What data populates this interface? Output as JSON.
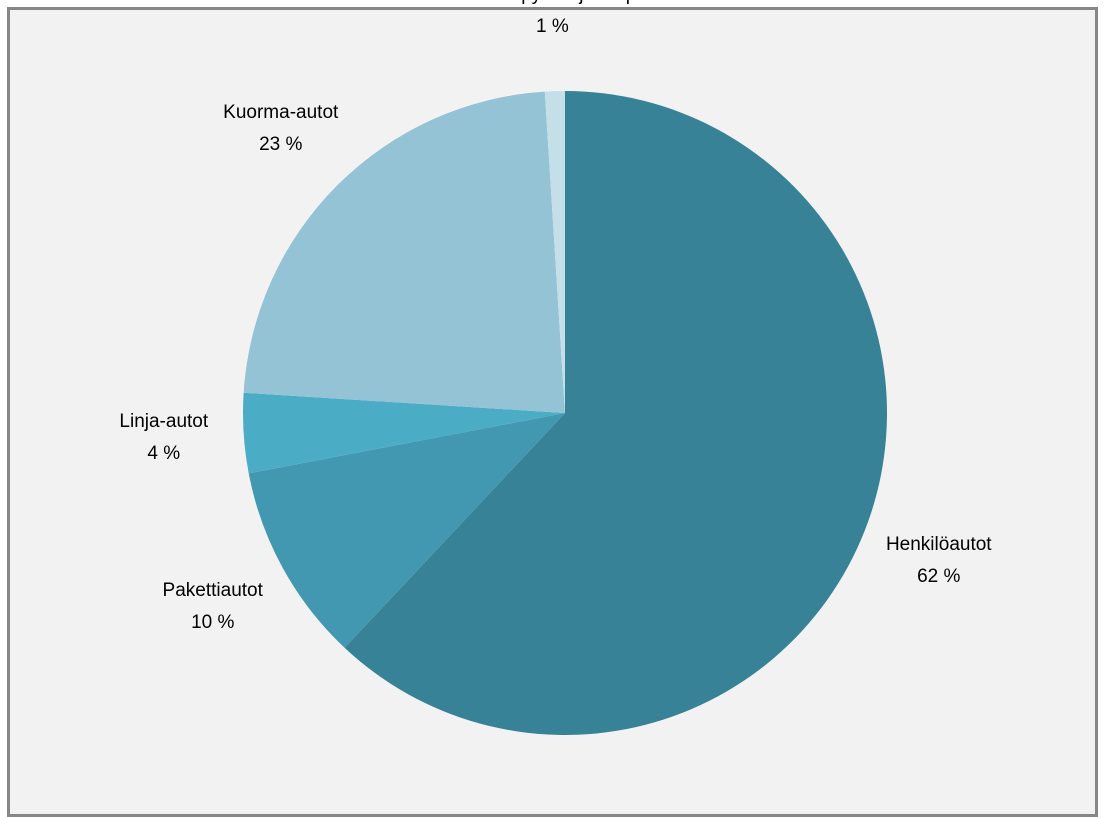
{
  "chart_data": {
    "type": "pie",
    "categories": [
      "Henkilöautot",
      "Pakettiautot",
      "Linja-autot",
      "Kuorma-autot",
      "Moottoripyörät ja mopot"
    ],
    "values": [
      62,
      10,
      4,
      23,
      1
    ],
    "value_labels": [
      "62 %",
      "10 %",
      "4 %",
      "23 %",
      "1 %"
    ],
    "colors": [
      "#378296",
      "#4298b0",
      "#4bacc6",
      "#93c3d5",
      "#c5dfe9"
    ]
  }
}
